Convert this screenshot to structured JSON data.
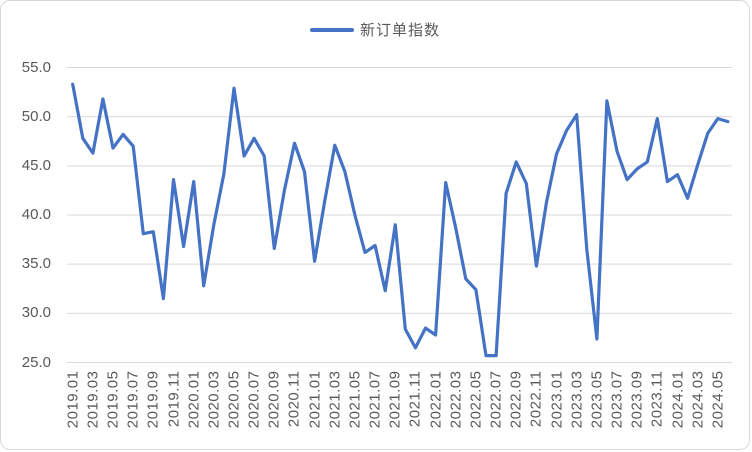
{
  "card": {
    "background": "#ffffff",
    "border_color": "#d8d8d8"
  },
  "legend": {
    "label": "新订单指数",
    "line_color": "#4472c4"
  },
  "chart_data": {
    "type": "line",
    "title": "",
    "xlabel": "",
    "ylabel": "",
    "legend_position": "top-center",
    "grid": true,
    "gridline_color": "#d9d9d9",
    "axis_label_color": "#595959",
    "ylim": [
      25.0,
      55.0
    ],
    "y_ticks": [
      55.0,
      50.0,
      45.0,
      40.0,
      35.0,
      30.0,
      25.0
    ],
    "y_tick_labels": [
      "55.0",
      "50.0",
      "45.0",
      "40.0",
      "35.0",
      "30.0",
      "25.0"
    ],
    "x": [
      "2019.01",
      "2019.02",
      "2019.03",
      "2019.04",
      "2019.05",
      "2019.06",
      "2019.07",
      "2019.08",
      "2019.09",
      "2019.10",
      "2019.11",
      "2019.12",
      "2020.01",
      "2020.02",
      "2020.03",
      "2020.04",
      "2020.05",
      "2020.06",
      "2020.07",
      "2020.08",
      "2020.09",
      "2020.10",
      "2020.11",
      "2020.12",
      "2021.01",
      "2021.02",
      "2021.03",
      "2021.04",
      "2021.05",
      "2021.06",
      "2021.07",
      "2021.08",
      "2021.09",
      "2021.10",
      "2021.11",
      "2021.12",
      "2022.01",
      "2022.02",
      "2022.03",
      "2022.04",
      "2022.05",
      "2022.06",
      "2022.07",
      "2022.08",
      "2022.09",
      "2022.10",
      "2022.11",
      "2022.12",
      "2023.01",
      "2023.02",
      "2023.03",
      "2023.04",
      "2023.05",
      "2023.06",
      "2023.07",
      "2023.08",
      "2023.09",
      "2023.10",
      "2023.11",
      "2023.12",
      "2024.01",
      "2024.02",
      "2024.03",
      "2024.04",
      "2024.05",
      "2024.06"
    ],
    "x_tick_labels": [
      "2019.01",
      "2019.03",
      "2019.05",
      "2019.07",
      "2019.09",
      "2019.11",
      "2020.01",
      "2020.03",
      "2020.05",
      "2020.07",
      "2020.09",
      "2020.11",
      "2021.01",
      "2021.03",
      "2021.05",
      "2021.07",
      "2021.09",
      "2021.11",
      "2022.01",
      "2022.03",
      "2022.05",
      "2022.07",
      "2022.09",
      "2022.11",
      "2023.01",
      "2023.03",
      "2023.05",
      "2023.07",
      "2023.09",
      "2023.11",
      "2024.01",
      "2024.03",
      "2024.05"
    ],
    "x_tick_step": 2,
    "series": [
      {
        "name": "新订单指数",
        "color": "#4472c4",
        "values": [
          53.3,
          47.8,
          46.3,
          51.8,
          46.8,
          48.2,
          47.0,
          38.1,
          38.3,
          31.5,
          43.6,
          36.8,
          43.4,
          32.8,
          39.0,
          44.2,
          52.9,
          46.0,
          47.8,
          46.0,
          36.6,
          42.5,
          47.3,
          44.4,
          35.3,
          41.4,
          47.1,
          44.4,
          40.0,
          36.2,
          36.9,
          32.3,
          39.0,
          28.4,
          26.5,
          28.5,
          27.8,
          43.3,
          38.7,
          33.5,
          32.4,
          25.7,
          25.7,
          42.2,
          45.4,
          43.2,
          34.8,
          41.3,
          46.2,
          48.6,
          50.2,
          36.5,
          27.4,
          51.6,
          46.5,
          43.6,
          44.7,
          45.4,
          49.8,
          43.4,
          44.1,
          41.7,
          45.1,
          48.3,
          49.8,
          49.5
        ]
      }
    ]
  }
}
